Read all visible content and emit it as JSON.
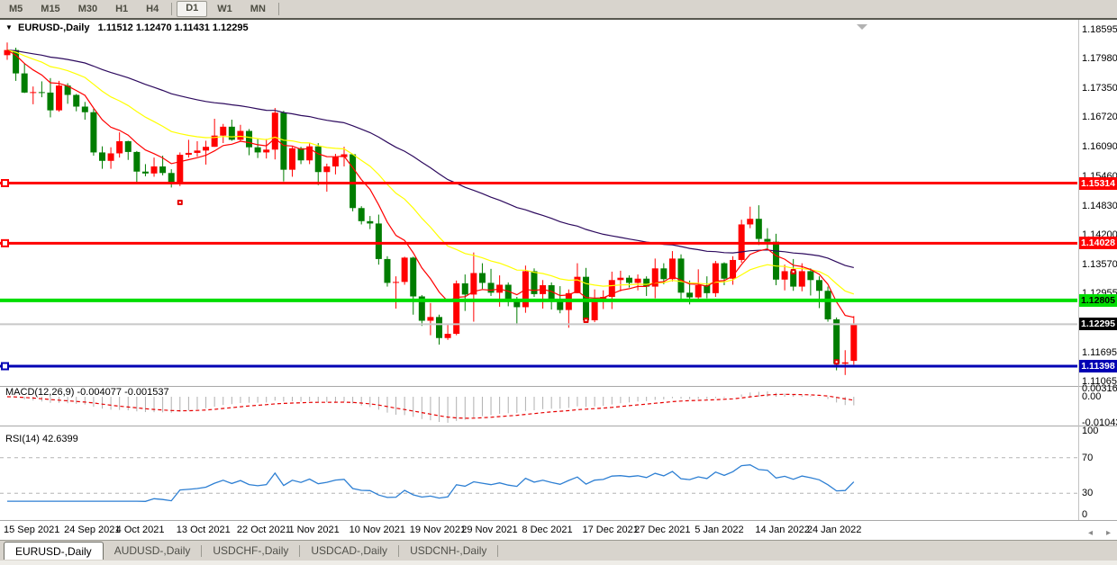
{
  "toolbar": {
    "timeframes": [
      {
        "label": "M5",
        "active": false
      },
      {
        "label": "M15",
        "active": false
      },
      {
        "label": "M30",
        "active": false
      },
      {
        "label": "H1",
        "active": false
      },
      {
        "label": "H4",
        "active": false
      },
      {
        "label": "D1",
        "active": true
      },
      {
        "label": "W1",
        "active": false
      },
      {
        "label": "MN",
        "active": false
      }
    ]
  },
  "title": {
    "marker": "▼",
    "symbol": "EURUSD-,Daily",
    "ohlc": "1.11512 1.12470 1.11431 1.12295"
  },
  "right_axis": {
    "ticks": [
      "1.18595",
      "1.17980",
      "1.17350",
      "1.16720",
      "1.16090",
      "1.15460",
      "1.14830",
      "1.14200",
      "1.13570",
      "1.12955",
      "1.11695",
      "1.11065"
    ],
    "badges": [
      {
        "value": "1.15314",
        "price": 1.15314,
        "bg": "#ff0000",
        "fg": "#ffffff"
      },
      {
        "value": "1.14028",
        "price": 1.14028,
        "bg": "#ff0000",
        "fg": "#ffffff"
      },
      {
        "value": "1.12805",
        "price": 1.12805,
        "bg": "#00dd00",
        "fg": "#000000"
      },
      {
        "value": "1.12295",
        "price": 1.12295,
        "bg": "#000000",
        "fg": "#ffffff"
      },
      {
        "value": "1.11398",
        "price": 1.11398,
        "bg": "#0000b4",
        "fg": "#ffffff"
      }
    ]
  },
  "indicators": {
    "macd": {
      "label": "MACD(12,26,9) -0.004077 -0.001537",
      "scale": [
        "0.003165",
        "0.00",
        "-0.01043"
      ]
    },
    "rsi": {
      "label": "RSI(14) 42.6399",
      "scale": [
        "100",
        "70",
        "30",
        "0"
      ]
    }
  },
  "tabs": [
    {
      "label": "EURUSD-,Daily",
      "active": true
    },
    {
      "label": "AUDUSD-,Daily",
      "active": false
    },
    {
      "label": "USDCHF-,Daily",
      "active": false
    },
    {
      "label": "USDCAD-,Daily",
      "active": false
    },
    {
      "label": "USDCNH-,Daily",
      "active": false
    }
  ],
  "scrollbar": {
    "left_arrow": "◂",
    "right_arrow": "▸"
  },
  "chart_data": {
    "type": "candlestick",
    "symbol": "EURUSD-",
    "timeframe": "Daily",
    "ohlc_current": {
      "open": 1.11512,
      "high": 1.1247,
      "low": 1.11431,
      "close": 1.12295
    },
    "price_range": [
      1.11065,
      1.18595
    ],
    "up_color": "#ff0000",
    "down_color": "#007d00",
    "candles": [
      [
        1.1805,
        1.1832,
        1.1795,
        1.1816
      ],
      [
        1.1816,
        1.1821,
        1.175,
        1.1766
      ],
      [
        1.1766,
        1.1788,
        1.1724,
        1.1725
      ],
      [
        1.1725,
        1.1738,
        1.17,
        1.1726
      ],
      [
        1.1726,
        1.1749,
        1.1715,
        1.1725
      ],
      [
        1.1725,
        1.1756,
        1.1672,
        1.1687
      ],
      [
        1.1687,
        1.175,
        1.1684,
        1.174
      ],
      [
        1.174,
        1.1745,
        1.1701,
        1.172
      ],
      [
        1.172,
        1.1722,
        1.1685,
        1.1695
      ],
      [
        1.1695,
        1.1705,
        1.1667,
        1.1683
      ],
      [
        1.1683,
        1.169,
        1.159,
        1.1597
      ],
      [
        1.1597,
        1.161,
        1.1562,
        1.1579
      ],
      [
        1.1579,
        1.1608,
        1.1562,
        1.1595
      ],
      [
        1.1595,
        1.164,
        1.1586,
        1.1621
      ],
      [
        1.1621,
        1.1622,
        1.1581,
        1.1598
      ],
      [
        1.1598,
        1.16,
        1.1529,
        1.1556
      ],
      [
        1.1556,
        1.1572,
        1.1546,
        1.1552
      ],
      [
        1.1552,
        1.1586,
        1.1545,
        1.1567
      ],
      [
        1.1567,
        1.159,
        1.1548,
        1.1553
      ],
      [
        1.1553,
        1.1561,
        1.1522,
        1.153
      ],
      [
        1.153,
        1.1597,
        1.1525,
        1.1592
      ],
      [
        1.1592,
        1.1624,
        1.1586,
        1.1596
      ],
      [
        1.1596,
        1.1621,
        1.1588,
        1.1601
      ],
      [
        1.1601,
        1.1622,
        1.1571,
        1.1609
      ],
      [
        1.1609,
        1.1669,
        1.1609,
        1.1633
      ],
      [
        1.1633,
        1.1658,
        1.1617,
        1.1652
      ],
      [
        1.1652,
        1.1667,
        1.1622,
        1.1624
      ],
      [
        1.1624,
        1.1656,
        1.162,
        1.1643
      ],
      [
        1.1643,
        1.1647,
        1.1591,
        1.1608
      ],
      [
        1.1608,
        1.1626,
        1.1585,
        1.1597
      ],
      [
        1.1597,
        1.1626,
        1.1584,
        1.1603
      ],
      [
        1.1603,
        1.1692,
        1.1582,
        1.1682
      ],
      [
        1.1682,
        1.1686,
        1.1535,
        1.156
      ],
      [
        1.156,
        1.1609,
        1.1545,
        1.1606
      ],
      [
        1.1606,
        1.1609,
        1.1572,
        1.158
      ],
      [
        1.158,
        1.1616,
        1.1572,
        1.161
      ],
      [
        1.161,
        1.1617,
        1.1527,
        1.1555
      ],
      [
        1.1555,
        1.1573,
        1.1513,
        1.1567
      ],
      [
        1.1567,
        1.1594,
        1.155,
        1.1587
      ],
      [
        1.1587,
        1.1609,
        1.1567,
        1.1593
      ],
      [
        1.1593,
        1.1594,
        1.1471,
        1.1478
      ],
      [
        1.1478,
        1.1482,
        1.1443,
        1.145
      ],
      [
        1.145,
        1.1461,
        1.1433,
        1.1445
      ],
      [
        1.1445,
        1.1464,
        1.1357,
        1.1369
      ],
      [
        1.1369,
        1.1375,
        1.131,
        1.1318
      ],
      [
        1.1318,
        1.1332,
        1.1263,
        1.132
      ],
      [
        1.132,
        1.1374,
        1.1314,
        1.1372
      ],
      [
        1.1372,
        1.1374,
        1.125,
        1.1289
      ],
      [
        1.1289,
        1.1292,
        1.1226,
        1.1237
      ],
      [
        1.1237,
        1.1275,
        1.1206,
        1.1245
      ],
      [
        1.1245,
        1.125,
        1.1186,
        1.12
      ],
      [
        1.12,
        1.123,
        1.1196,
        1.1209
      ],
      [
        1.1209,
        1.1323,
        1.1206,
        1.1317
      ],
      [
        1.1317,
        1.1336,
        1.1258,
        1.1293
      ],
      [
        1.1293,
        1.1383,
        1.1235,
        1.1339
      ],
      [
        1.1339,
        1.136,
        1.1305,
        1.1318
      ],
      [
        1.1318,
        1.1348,
        1.129,
        1.1297
      ],
      [
        1.1297,
        1.1334,
        1.1267,
        1.1314
      ],
      [
        1.1314,
        1.1319,
        1.1268,
        1.1284
      ],
      [
        1.1284,
        1.1288,
        1.1228,
        1.1266
      ],
      [
        1.1266,
        1.1355,
        1.1254,
        1.1343
      ],
      [
        1.1343,
        1.1349,
        1.1288,
        1.1294
      ],
      [
        1.1294,
        1.1324,
        1.1263,
        1.1313
      ],
      [
        1.1313,
        1.1319,
        1.1261,
        1.1284
      ],
      [
        1.1284,
        1.1311,
        1.1253,
        1.126
      ],
      [
        1.126,
        1.1304,
        1.1222,
        1.1296
      ],
      [
        1.1296,
        1.136,
        1.1296,
        1.1331
      ],
      [
        1.1331,
        1.135,
        1.1236,
        1.1238
      ],
      [
        1.1238,
        1.1304,
        1.1234,
        1.128
      ],
      [
        1.128,
        1.1302,
        1.1262,
        1.1288
      ],
      [
        1.1288,
        1.1342,
        1.1262,
        1.1324
      ],
      [
        1.1324,
        1.1344,
        1.13,
        1.1329
      ],
      [
        1.1329,
        1.1334,
        1.1308,
        1.1318
      ],
      [
        1.1318,
        1.1336,
        1.1302,
        1.1327
      ],
      [
        1.1327,
        1.1332,
        1.129,
        1.131
      ],
      [
        1.131,
        1.137,
        1.1285,
        1.1349
      ],
      [
        1.1349,
        1.136,
        1.1315,
        1.1326
      ],
      [
        1.1326,
        1.1386,
        1.1321,
        1.137
      ],
      [
        1.137,
        1.1379,
        1.1279,
        1.1297
      ],
      [
        1.1297,
        1.1323,
        1.1272,
        1.1287
      ],
      [
        1.1287,
        1.1347,
        1.128,
        1.1313
      ],
      [
        1.1313,
        1.1332,
        1.1285,
        1.1296
      ],
      [
        1.1296,
        1.1365,
        1.1288,
        1.136
      ],
      [
        1.136,
        1.1362,
        1.1313,
        1.1327
      ],
      [
        1.1327,
        1.1375,
        1.1314,
        1.1367
      ],
      [
        1.1367,
        1.1453,
        1.1361,
        1.1443
      ],
      [
        1.1443,
        1.1481,
        1.1435,
        1.1455
      ],
      [
        1.1455,
        1.1484,
        1.1399,
        1.1412
      ],
      [
        1.1412,
        1.1435,
        1.1392,
        1.1406
      ],
      [
        1.1406,
        1.1423,
        1.1313,
        1.1325
      ],
      [
        1.1325,
        1.1357,
        1.1302,
        1.1343
      ],
      [
        1.1343,
        1.1369,
        1.1301,
        1.131
      ],
      [
        1.131,
        1.136,
        1.13,
        1.1343
      ],
      [
        1.1343,
        1.1349,
        1.1291,
        1.1324
      ],
      [
        1.1324,
        1.1332,
        1.1264,
        1.1301
      ],
      [
        1.1301,
        1.131,
        1.1235,
        1.124
      ],
      [
        1.124,
        1.1244,
        1.1131,
        1.1145
      ],
      [
        1.1145,
        1.1174,
        1.1121,
        1.1148
      ],
      [
        1.11512,
        1.1247,
        1.11431,
        1.12295
      ]
    ],
    "x_axis_labels": [
      {
        "bar": 0,
        "text": "15 Sep 2021"
      },
      {
        "bar": 7,
        "text": "24 Sep 2021"
      },
      {
        "bar": 13,
        "text": "4 Oct 2021"
      },
      {
        "bar": 20,
        "text": "13 Oct 2021"
      },
      {
        "bar": 27,
        "text": "22 Oct 2021"
      },
      {
        "bar": 33,
        "text": "1 Nov 2021"
      },
      {
        "bar": 40,
        "text": "10 Nov 2021"
      },
      {
        "bar": 47,
        "text": "19 Nov 2021"
      },
      {
        "bar": 53,
        "text": "29 Nov 2021"
      },
      {
        "bar": 60,
        "text": "8 Dec 2021"
      },
      {
        "bar": 67,
        "text": "17 Dec 2021"
      },
      {
        "bar": 73,
        "text": "27 Dec 2021"
      },
      {
        "bar": 80,
        "text": "5 Jan 2022"
      },
      {
        "bar": 87,
        "text": "14 Jan 2022"
      },
      {
        "bar": 93,
        "text": "24 Jan 2022"
      }
    ],
    "moving_averages": [
      {
        "period": 55,
        "type": "ema",
        "color": "#2d0a5e"
      },
      {
        "period": 21,
        "type": "ema",
        "color": "#ffff00"
      },
      {
        "period": 8,
        "type": "ema",
        "color": "#ff0000"
      }
    ],
    "levels": [
      {
        "price": 1.15314,
        "color": "#ff0000",
        "width": 3,
        "anchor": true
      },
      {
        "price": 1.14028,
        "color": "#ff0000",
        "width": 3,
        "anchor": true
      },
      {
        "price": 1.12805,
        "color": "#00dd00",
        "width": 4,
        "anchor": false
      },
      {
        "price": 1.12295,
        "color": "#c8c8c8",
        "width": 2,
        "anchor": false
      },
      {
        "price": 1.11398,
        "color": "#0000b4",
        "width": 3,
        "anchor": true
      }
    ],
    "markers": [
      {
        "bar": 20,
        "price": 1.149
      },
      {
        "bar": 67,
        "price": 1.1238
      },
      {
        "bar": 91,
        "price": 1.1342
      },
      {
        "bar": 96,
        "price": 1.1149
      }
    ],
    "macd": {
      "fast": 12,
      "slow": 26,
      "signal": 9,
      "macd_value": -0.004077,
      "signal_value": -0.001537,
      "histogram_color": "#b0b0b0",
      "signal_color": "#e60000",
      "range": [
        -0.01043,
        0.003165
      ]
    },
    "rsi": {
      "period": 14,
      "value": 42.6399,
      "color": "#2d7fd3",
      "levels": [
        70,
        30
      ],
      "range": [
        0,
        100
      ]
    }
  }
}
